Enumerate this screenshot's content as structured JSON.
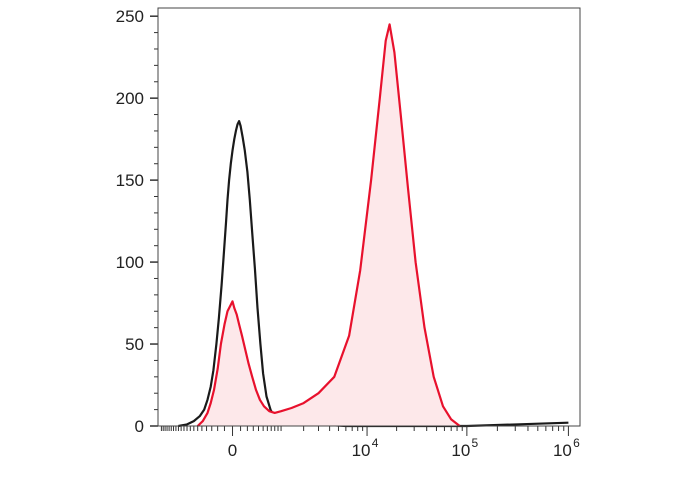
{
  "chart_data": {
    "type": "area",
    "title": "",
    "xlabel": "",
    "ylabel": "",
    "x_scale": "biexponential",
    "x_ticks": [
      {
        "value": 0,
        "base": "0",
        "exp": ""
      },
      {
        "value": 10000,
        "base": "10",
        "exp": "4"
      },
      {
        "value": 100000,
        "base": "10",
        "exp": "5"
      },
      {
        "value": 1000000,
        "base": "10",
        "exp": "6"
      }
    ],
    "ylim": [
      0,
      255
    ],
    "y_ticks": [
      {
        "value": 0,
        "label": "0"
      },
      {
        "value": 50,
        "label": "50"
      },
      {
        "value": 100,
        "label": "100"
      },
      {
        "value": 150,
        "label": "150"
      },
      {
        "value": 200,
        "label": "200"
      },
      {
        "value": 250,
        "label": "250"
      }
    ],
    "grid": false,
    "legend": "none",
    "series": [
      {
        "color": "#1a1a1a",
        "fill": "none",
        "points": [
          [
            -1200,
            0
          ],
          [
            -900,
            1
          ],
          [
            -700,
            3
          ],
          [
            -550,
            6
          ],
          [
            -450,
            10
          ],
          [
            -380,
            16
          ],
          [
            -320,
            24
          ],
          [
            -270,
            34
          ],
          [
            -220,
            50
          ],
          [
            -180,
            66
          ],
          [
            -140,
            86
          ],
          [
            -110,
            104
          ],
          [
            -80,
            124
          ],
          [
            -60,
            138
          ],
          [
            -40,
            150
          ],
          [
            -20,
            160
          ],
          [
            0,
            168
          ],
          [
            20,
            175
          ],
          [
            40,
            180
          ],
          [
            60,
            184
          ],
          [
            80,
            186
          ],
          [
            100,
            183
          ],
          [
            130,
            176
          ],
          [
            160,
            168
          ],
          [
            200,
            155
          ],
          [
            240,
            138
          ],
          [
            280,
            118
          ],
          [
            330,
            96
          ],
          [
            380,
            72
          ],
          [
            440,
            50
          ],
          [
            500,
            32
          ],
          [
            580,
            18
          ],
          [
            680,
            10
          ],
          [
            800,
            5
          ],
          [
            1000,
            3
          ],
          [
            1500,
            2
          ],
          [
            3000,
            1
          ],
          [
            6000,
            0
          ],
          [
            20000,
            0
          ],
          [
            100000,
            0
          ],
          [
            1000000,
            2
          ]
        ]
      },
      {
        "color": "#e8112d",
        "fill": "#fde8ea",
        "points": [
          [
            -600,
            0
          ],
          [
            -480,
            3
          ],
          [
            -380,
            8
          ],
          [
            -320,
            14
          ],
          [
            -260,
            22
          ],
          [
            -200,
            35
          ],
          [
            -150,
            50
          ],
          [
            -100,
            62
          ],
          [
            -60,
            70
          ],
          [
            -20,
            74
          ],
          [
            0,
            76
          ],
          [
            20,
            72
          ],
          [
            50,
            68
          ],
          [
            80,
            62
          ],
          [
            120,
            55
          ],
          [
            170,
            46
          ],
          [
            220,
            38
          ],
          [
            280,
            30
          ],
          [
            350,
            22
          ],
          [
            430,
            16
          ],
          [
            520,
            12
          ],
          [
            650,
            9
          ],
          [
            800,
            8
          ],
          [
            1000,
            9
          ],
          [
            1400,
            11
          ],
          [
            2000,
            14
          ],
          [
            3000,
            20
          ],
          [
            4500,
            30
          ],
          [
            6500,
            55
          ],
          [
            8500,
            95
          ],
          [
            11000,
            150
          ],
          [
            13500,
            200
          ],
          [
            15500,
            235
          ],
          [
            17000,
            245
          ],
          [
            19000,
            228
          ],
          [
            22000,
            190
          ],
          [
            26000,
            145
          ],
          [
            31000,
            100
          ],
          [
            38000,
            60
          ],
          [
            47000,
            30
          ],
          [
            58000,
            12
          ],
          [
            70000,
            4
          ],
          [
            85000,
            0
          ]
        ]
      }
    ]
  }
}
